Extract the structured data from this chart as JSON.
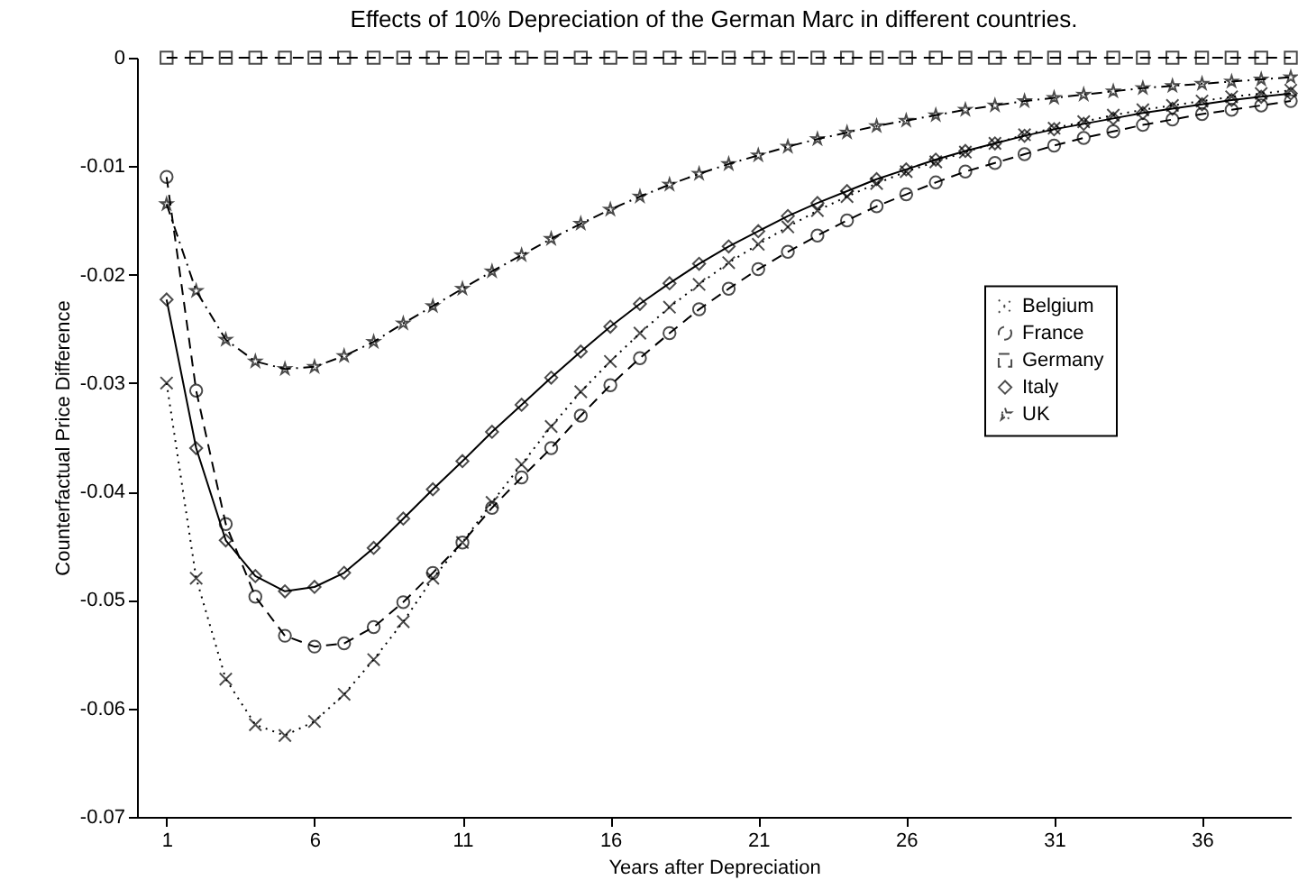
{
  "chart_data": {
    "type": "line",
    "title": "Effects of 10% Depreciation of the German Marc in different countries.",
    "xlabel": "Years after Depreciation",
    "ylabel": "Counterfactual Price Difference",
    "x": [
      1,
      2,
      3,
      4,
      5,
      6,
      7,
      8,
      9,
      10,
      11,
      12,
      13,
      14,
      15,
      16,
      17,
      18,
      19,
      20,
      21,
      22,
      23,
      24,
      25,
      26,
      27,
      28,
      29,
      30,
      31,
      32,
      33,
      34,
      35,
      36,
      37,
      38,
      39
    ],
    "series": [
      {
        "name": "Belgium",
        "color": "#000000",
        "marker": "cross",
        "line_style": "dotted",
        "values": [
          -0.03,
          -0.048,
          -0.0573,
          -0.0615,
          -0.0625,
          -0.0612,
          -0.0587,
          -0.0555,
          -0.052,
          -0.048,
          -0.0447,
          -0.041,
          -0.0375,
          -0.034,
          -0.0308,
          -0.028,
          -0.0254,
          -0.023,
          -0.0209,
          -0.0189,
          -0.0172,
          -0.0156,
          -0.0141,
          -0.0128,
          -0.0116,
          -0.0105,
          -0.0096,
          -0.0087,
          -0.0079,
          -0.0071,
          -0.0065,
          -0.0059,
          -0.0053,
          -0.0048,
          -0.0044,
          -0.004,
          -0.0036,
          -0.0033,
          -0.003
        ]
      },
      {
        "name": "France",
        "color": "#000000",
        "marker": "circle",
        "line_style": "dashed",
        "values": [
          -0.011,
          -0.0307,
          -0.043,
          -0.0497,
          -0.0533,
          -0.0543,
          -0.054,
          -0.0525,
          -0.0502,
          -0.0475,
          -0.0447,
          -0.0415,
          -0.0387,
          -0.036,
          -0.033,
          -0.0302,
          -0.0277,
          -0.0254,
          -0.0232,
          -0.0213,
          -0.0195,
          -0.0179,
          -0.0164,
          -0.015,
          -0.0137,
          -0.0126,
          -0.0115,
          -0.0105,
          -0.0097,
          -0.0089,
          -0.0081,
          -0.0074,
          -0.0068,
          -0.0062,
          -0.0057,
          -0.0052,
          -0.0048,
          -0.0044,
          -0.004
        ]
      },
      {
        "name": "Germany",
        "color": "#000000",
        "marker": "square",
        "line_style": "dashed",
        "values": [
          0,
          0,
          0,
          0,
          0,
          0,
          0,
          0,
          0,
          0,
          0,
          0,
          0,
          0,
          0,
          0,
          0,
          0,
          0,
          0,
          0,
          0,
          0,
          0,
          0,
          0,
          0,
          0,
          0,
          0,
          0,
          0,
          0,
          0,
          0,
          0,
          0,
          0,
          0
        ]
      },
      {
        "name": "Italy",
        "color": "#000000",
        "marker": "diamond",
        "line_style": "solid",
        "values": [
          -0.0223,
          -0.036,
          -0.0445,
          -0.0478,
          -0.0492,
          -0.0488,
          -0.0475,
          -0.0452,
          -0.0425,
          -0.0398,
          -0.0372,
          -0.0345,
          -0.032,
          -0.0295,
          -0.0271,
          -0.0248,
          -0.0227,
          -0.0208,
          -0.019,
          -0.0174,
          -0.016,
          -0.0146,
          -0.0134,
          -0.0123,
          -0.0112,
          -0.0103,
          -0.0094,
          -0.0086,
          -0.0079,
          -0.0072,
          -0.0066,
          -0.0061,
          -0.0056,
          -0.0051,
          -0.0047,
          -0.0043,
          -0.0039,
          -0.0036,
          -0.0033
        ]
      },
      {
        "name": "UK",
        "color": "#000000",
        "marker": "star",
        "line_style": "dashdot",
        "values": [
          -0.0135,
          -0.0215,
          -0.026,
          -0.028,
          -0.0287,
          -0.0285,
          -0.0275,
          -0.0262,
          -0.0245,
          -0.0229,
          -0.0213,
          -0.0197,
          -0.0182,
          -0.0167,
          -0.0153,
          -0.014,
          -0.0128,
          -0.0117,
          -0.0107,
          -0.0098,
          -0.009,
          -0.0082,
          -0.0075,
          -0.0069,
          -0.0063,
          -0.0058,
          -0.0053,
          -0.0048,
          -0.0044,
          -0.004,
          -0.0037,
          -0.0034,
          -0.0031,
          -0.0028,
          -0.0026,
          -0.0024,
          -0.0022,
          -0.002,
          -0.0018
        ]
      }
    ],
    "xlim": [
      0,
      39
    ],
    "xticks": [
      1,
      6,
      11,
      16,
      21,
      26,
      31,
      36
    ],
    "ylim": [
      -0.07,
      0
    ],
    "yticks": [
      -0.07,
      -0.06,
      -0.05,
      -0.04,
      -0.03,
      -0.02,
      -0.01,
      0
    ],
    "grid": false,
    "legend": "right"
  }
}
